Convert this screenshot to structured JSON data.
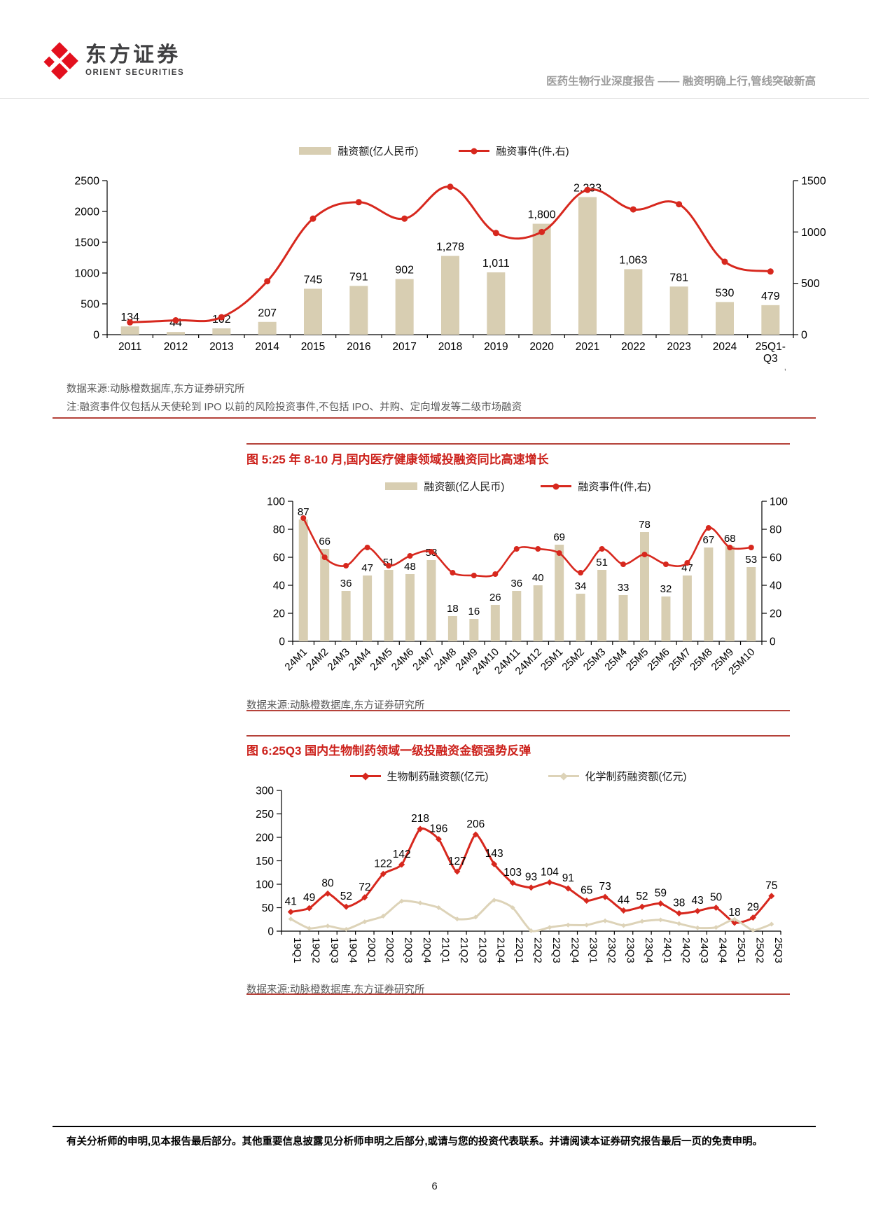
{
  "header": {
    "logo_cn": "东方证券",
    "logo_en": "ORIENT SECURITIES",
    "report_title": "医药生物行业深度报告 —— 融资明确上行,管线突破新高"
  },
  "colors": {
    "bar_fill": "#d8ceb2",
    "red_line": "#d7281e",
    "tan_line": "#ddd3b8",
    "fig_title_red": "#cc211b",
    "rule_red": "#b5423a",
    "source_gray": "#595959",
    "header_gray": "#9c9c9c",
    "logo_red": "#e3101e",
    "logo_text": "#3f3f41"
  },
  "chart_data": [
    {
      "type": "bar",
      "legend_bar": "融资额(亿人民币)",
      "legend_line": "融资事件(件,右)",
      "categories": [
        "2011",
        "2012",
        "2013",
        "2014",
        "2015",
        "2016",
        "2017",
        "2018",
        "2019",
        "2020",
        "2021",
        "2022",
        "2023",
        "2024",
        "25Q1-\nQ3"
      ],
      "bar_values": [
        134,
        44,
        102,
        207,
        745,
        791,
        902,
        1278,
        1011,
        1800,
        2233,
        1063,
        781,
        530,
        479
      ],
      "bar_labels": [
        "134",
        "44",
        "102",
        "207",
        "745",
        "791",
        "902",
        "1,278",
        "1,011",
        "1,800",
        "2,233",
        "1,063",
        "781",
        "530",
        "479"
      ],
      "line_values": [
        120,
        140,
        170,
        520,
        1130,
        1290,
        1130,
        1440,
        990,
        1000,
        1410,
        1220,
        1270,
        710,
        615
      ],
      "left_axis": {
        "min": 0,
        "max": 2500,
        "step": 500
      },
      "right_axis": {
        "min": 0,
        "max": 1500,
        "step": 500
      },
      "ylabel": "融资额(亿人民币)",
      "y2label": "融资事件(件)",
      "source": "数据来源:动脉橙数据库,东方证券研究所",
      "note": "注:融资事件仅包括从天使轮到 IPO 以前的风险投资事件,不包括 IPO、并购、定向增发等二级市场融资"
    },
    {
      "type": "bar",
      "fig_title": "图 5:25 年 8-10 月,国内医疗健康领域投融资同比高速增长",
      "legend_bar": "融资额(亿人民币)",
      "legend_line": "融资事件(件,右)",
      "categories": [
        "24M1",
        "24M2",
        "24M3",
        "24M4",
        "24M5",
        "24M6",
        "24M7",
        "24M8",
        "24M9",
        "24M10",
        "24M11",
        "24M12",
        "25M1",
        "25M2",
        "25M3",
        "25M4",
        "25M5",
        "25M6",
        "25M7",
        "25M8",
        "25M9",
        "25M10"
      ],
      "bar_values": [
        87,
        66,
        36,
        47,
        51,
        48,
        58,
        18,
        16,
        26,
        36,
        40,
        69,
        34,
        51,
        33,
        78,
        32,
        47,
        67,
        68,
        53
      ],
      "line_values": [
        88,
        60,
        54,
        67,
        54,
        61,
        64,
        49,
        47,
        48,
        66,
        66,
        63,
        49,
        66,
        55,
        62,
        55,
        56,
        81,
        67,
        67
      ],
      "left_axis": {
        "min": 0,
        "max": 100,
        "step": 20
      },
      "right_axis": {
        "min": 0,
        "max": 100,
        "step": 20
      },
      "source": "数据来源:动脉橙数据库,东方证券研究所"
    },
    {
      "type": "line",
      "fig_title": "图 6:25Q3 国内生物制药领域一级投融资金额强势反弹",
      "categories": [
        "19Q1",
        "19Q2",
        "19Q3",
        "19Q4",
        "20Q1",
        "20Q2",
        "20Q3",
        "20Q4",
        "21Q1",
        "21Q2",
        "21Q3",
        "21Q4",
        "22Q1",
        "22Q2",
        "22Q3",
        "22Q4",
        "23Q1",
        "23Q2",
        "23Q3",
        "23Q4",
        "24Q1",
        "24Q2",
        "24Q3",
        "24Q4",
        "25Q1",
        "25Q2",
        "25Q3"
      ],
      "series": [
        {
          "name": "生物制药融资额(亿元)",
          "color_key": "red_line",
          "show_labels": true,
          "values": [
            41,
            49,
            80,
            52,
            72,
            122,
            142,
            218,
            196,
            127,
            206,
            143,
            103,
            93,
            104,
            91,
            65,
            73,
            44,
            52,
            59,
            38,
            43,
            50,
            18,
            29,
            75
          ]
        },
        {
          "name": "化学制药融资额(亿元)",
          "color_key": "tan_line",
          "show_labels": false,
          "values": [
            26,
            6,
            11,
            4,
            20,
            32,
            64,
            60,
            50,
            26,
            30,
            66,
            50,
            1,
            8,
            13,
            13,
            22,
            12,
            21,
            24,
            16,
            7,
            8,
            25,
            2,
            15
          ]
        }
      ],
      "left_axis": {
        "min": 0,
        "max": 300,
        "step": 50
      },
      "source": "数据来源:动脉橙数据库,东方证券研究所"
    }
  ],
  "footer": {
    "disclaimer": "有关分析师的申明,见本报告最后部分。其他重要信息披露见分析师申明之后部分,或请与您的投资代表联系。并请阅读本证券研究报告最后一页的免责申明。",
    "page_number": "6"
  },
  "stray_mark": "ʼ"
}
